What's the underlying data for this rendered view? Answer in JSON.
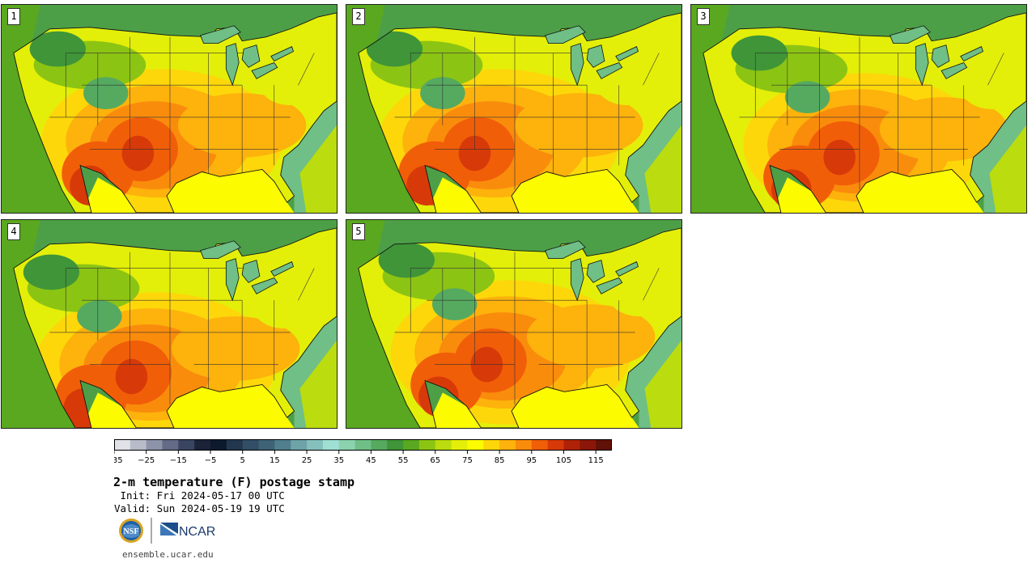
{
  "panels": [
    {
      "label": "1",
      "variant": 0
    },
    {
      "label": "2",
      "variant": 1
    },
    {
      "label": "3",
      "variant": 2
    },
    {
      "label": "4",
      "variant": 3
    },
    {
      "label": "5",
      "variant": 4
    }
  ],
  "colorbar": {
    "min": -35,
    "max": 120,
    "step": 5,
    "tick_labels": [
      "−35",
      "−25",
      "−15",
      "−5",
      "5",
      "15",
      "25",
      "35",
      "45",
      "55",
      "65",
      "75",
      "85",
      "95",
      "105",
      "115"
    ],
    "tick_values": [
      -35,
      -25,
      -15,
      -5,
      5,
      15,
      25,
      35,
      45,
      55,
      65,
      75,
      85,
      95,
      105,
      115
    ],
    "colors": [
      "#e1e2e8",
      "#b8bcc9",
      "#8d93a8",
      "#636b86",
      "#3a4562",
      "#1a2338",
      "#0d1a2e",
      "#22374e",
      "#314e66",
      "#3f6276",
      "#517f8d",
      "#6ea3a8",
      "#86c0bc",
      "#9fe0d3",
      "#8bd3ae",
      "#6fbf86",
      "#55aa60",
      "#3f9538",
      "#5aa81f",
      "#8cc414",
      "#bbdc0e",
      "#e3ef08",
      "#fcfb00",
      "#fdd70a",
      "#fdb20c",
      "#fa8c0c",
      "#f15e08",
      "#d73a08",
      "#b02208",
      "#8a1708",
      "#611108"
    ]
  },
  "title": "2-m temperature (F) postage stamp",
  "init": " Init: Fri 2024-05-17 00 UTC",
  "valid": "Valid: Sun 2024-05-19 19 UTC",
  "logos": {
    "left": "NSF",
    "right": "NCAR"
  },
  "footer": "ensemble.ucar.edu"
}
